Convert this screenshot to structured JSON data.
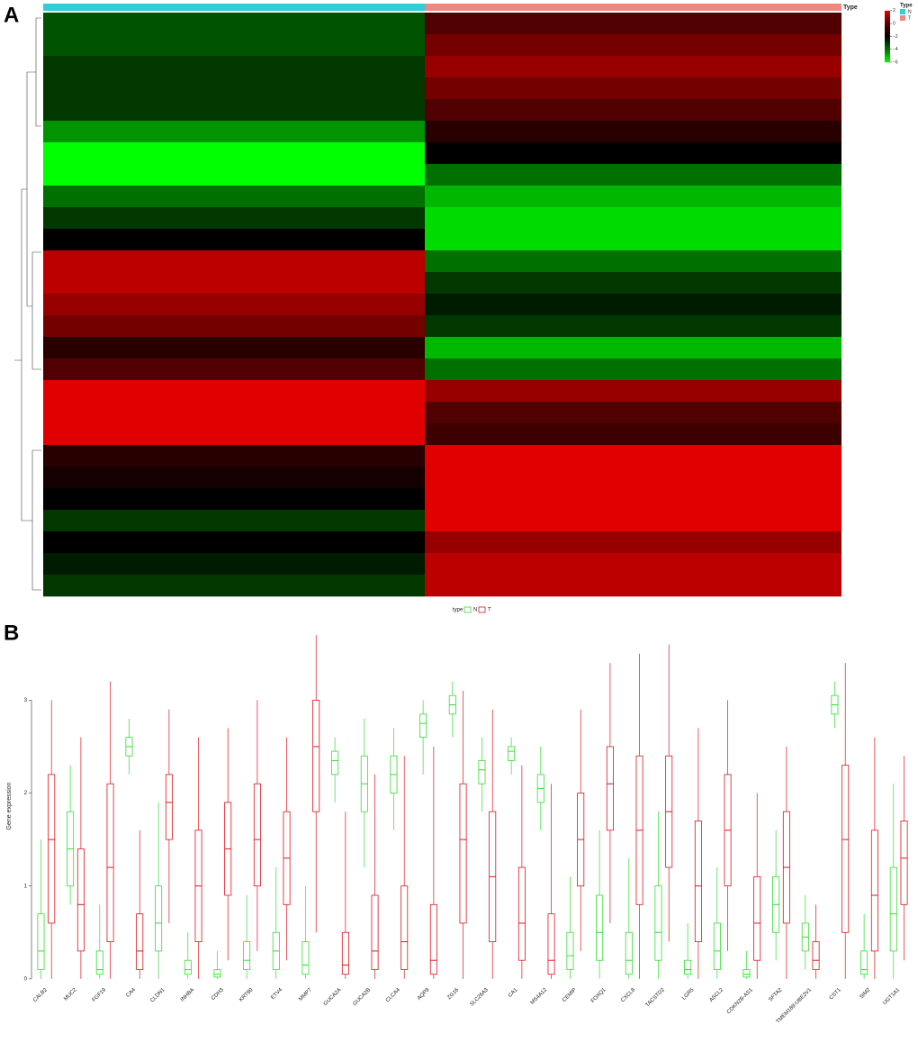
{
  "chart_data": [
    {
      "type": "heatmap",
      "panel_label": "A",
      "annotation": {
        "title": "Type",
        "categories": [
          "N",
          "T"
        ],
        "colors": [
          "#2ecfd6",
          "#f08880"
        ]
      },
      "columns": [
        "N",
        "T"
      ],
      "matrix": [
        [
          -3.5,
          0
        ],
        [
          -3.5,
          0.5
        ],
        [
          -3,
          1
        ],
        [
          -3,
          0.5
        ],
        [
          -3,
          0
        ],
        [
          -4.5,
          -1
        ],
        [
          -6,
          -2
        ],
        [
          -6,
          -4
        ],
        [
          -4,
          -5
        ],
        [
          -3,
          -5.5
        ],
        [
          -2,
          -5.5
        ],
        [
          1.5,
          -4
        ],
        [
          1.5,
          -3
        ],
        [
          1,
          -2.5
        ],
        [
          0.5,
          -3
        ],
        [
          -1,
          -5
        ],
        [
          0,
          -4
        ],
        [
          2.5,
          1
        ],
        [
          2.5,
          0
        ],
        [
          2,
          -0.5
        ],
        [
          -1,
          2.5
        ],
        [
          -1.5,
          2
        ],
        [
          -2,
          2
        ],
        [
          -3,
          2.5
        ],
        [
          -2,
          1
        ],
        [
          -2.5,
          1.5
        ],
        [
          -3,
          1.5
        ]
      ],
      "colorscale": {
        "values": [
          -6,
          -4,
          -2,
          0,
          2
        ],
        "colors": [
          "#00ff00",
          "#007000",
          "#000000",
          "#500000",
          "#e00000"
        ]
      },
      "colorbar_lim": [
        -6.7,
        3.1
      ],
      "colorbar_ticks": [
        2,
        0,
        {
          "value": -2,
          "label": "−2"
        },
        {
          "value": -4,
          "label": "−4"
        },
        {
          "value": -6,
          "label": "−6"
        }
      ]
    },
    {
      "type": "box",
      "panel_label": "B",
      "y_label": "Gene expression",
      "legend_title": "type",
      "categories": [
        "CALB2",
        "MUC2",
        "FGF19",
        "CA4",
        "CLDN1",
        "INHBA",
        "CDH3",
        "KRT80",
        "ETV4",
        "MMP7",
        "GUCA2A",
        "GUCA2B",
        "CLCA4",
        "AQP8",
        "ZG16",
        "SLC26A3",
        "CA1",
        "MS4A12",
        "CEMIP",
        "FOXQ1",
        "CXCL8",
        "TACSTD2",
        "LGR5",
        "ASCL2",
        "CDKN2B-AS1",
        "SFTA2",
        "TMEM189-UBE2V1",
        "CST1",
        "SIM2",
        "UGT1A1"
      ],
      "series": [
        {
          "name": "N",
          "color": "#33dd33",
          "boxes": [
            [
              0,
              0.1,
              0.3,
              0.7,
              1.5
            ],
            [
              0.8,
              1.0,
              1.4,
              1.8,
              2.3
            ],
            [
              0,
              0.05,
              0.1,
              0.3,
              0.8
            ],
            [
              2.2,
              2.4,
              2.5,
              2.6,
              2.8
            ],
            [
              0,
              0.3,
              0.6,
              1.0,
              1.9
            ],
            [
              0,
              0.05,
              0.1,
              0.2,
              0.5
            ],
            [
              0,
              0.02,
              0.05,
              0.1,
              0.3
            ],
            [
              0,
              0.1,
              0.2,
              0.4,
              0.9
            ],
            [
              0,
              0.1,
              0.3,
              0.5,
              1.2
            ],
            [
              0,
              0.05,
              0.15,
              0.4,
              1.0
            ],
            [
              1.9,
              2.2,
              2.35,
              2.45,
              2.6
            ],
            [
              1.2,
              1.8,
              2.1,
              2.4,
              2.8
            ],
            [
              1.6,
              2.0,
              2.2,
              2.4,
              2.7
            ],
            [
              2.2,
              2.6,
              2.75,
              2.85,
              3.0
            ],
            [
              2.6,
              2.85,
              2.95,
              3.05,
              3.2
            ],
            [
              1.8,
              2.1,
              2.25,
              2.35,
              2.6
            ],
            [
              2.2,
              2.35,
              2.45,
              2.5,
              2.6
            ],
            [
              1.6,
              1.9,
              2.05,
              2.2,
              2.5
            ],
            [
              0,
              0.1,
              0.25,
              0.5,
              1.1
            ],
            [
              0,
              0.2,
              0.5,
              0.9,
              1.6
            ],
            [
              0,
              0.05,
              0.2,
              0.5,
              1.3
            ],
            [
              0,
              0.2,
              0.5,
              1.0,
              1.8
            ],
            [
              0,
              0.05,
              0.1,
              0.2,
              0.6
            ],
            [
              0,
              0.1,
              0.3,
              0.6,
              1.2
            ],
            [
              0,
              0.02,
              0.05,
              0.1,
              0.3
            ],
            [
              0.2,
              0.5,
              0.8,
              1.1,
              1.6
            ],
            [
              0.1,
              0.3,
              0.45,
              0.6,
              0.9
            ],
            [
              2.7,
              2.85,
              2.95,
              3.05,
              3.2
            ],
            [
              0,
              0.05,
              0.1,
              0.3,
              0.7
            ],
            [
              0,
              0.3,
              0.7,
              1.2,
              2.1
            ]
          ]
        },
        {
          "name": "T",
          "color": "#e0141e",
          "boxes": [
            [
              0,
              0.6,
              1.5,
              2.2,
              3.0
            ],
            [
              0,
              0.3,
              0.8,
              1.4,
              2.6
            ],
            [
              0,
              0.4,
              1.2,
              2.1,
              3.2
            ],
            [
              0,
              0.1,
              0.3,
              0.7,
              1.6
            ],
            [
              0.6,
              1.5,
              1.9,
              2.2,
              2.9
            ],
            [
              0,
              0.4,
              1.0,
              1.6,
              2.6
            ],
            [
              0.2,
              0.9,
              1.4,
              1.9,
              2.7
            ],
            [
              0.3,
              1.0,
              1.5,
              2.1,
              3.0
            ],
            [
              0.2,
              0.8,
              1.3,
              1.8,
              2.6
            ],
            [
              0.5,
              1.8,
              2.5,
              3.0,
              3.7
            ],
            [
              0,
              0.05,
              0.15,
              0.5,
              1.8
            ],
            [
              0,
              0.1,
              0.3,
              0.9,
              2.2
            ],
            [
              0,
              0.1,
              0.4,
              1.0,
              2.4
            ],
            [
              0,
              0.05,
              0.2,
              0.8,
              2.5
            ],
            [
              0,
              0.6,
              1.5,
              2.1,
              3.1
            ],
            [
              0,
              0.4,
              1.1,
              1.8,
              2.9
            ],
            [
              0,
              0.2,
              0.6,
              1.2,
              2.3
            ],
            [
              0,
              0.05,
              0.2,
              0.7,
              2.1
            ],
            [
              0.3,
              1.0,
              1.5,
              2.0,
              2.9
            ],
            [
              0.6,
              1.6,
              2.1,
              2.5,
              3.4
            ],
            [
              0,
              0.8,
              1.6,
              2.4,
              3.5
            ],
            [
              0.4,
              1.2,
              1.8,
              2.4,
              3.6
            ],
            [
              0,
              0.4,
              1.0,
              1.7,
              2.7
            ],
            [
              0.3,
              1.0,
              1.6,
              2.2,
              3.0
            ],
            [
              0,
              0.2,
              0.6,
              1.1,
              2.0
            ],
            [
              0,
              0.6,
              1.2,
              1.8,
              2.5
            ],
            [
              0,
              0.1,
              0.2,
              0.4,
              0.8
            ],
            [
              0,
              0.5,
              1.5,
              2.3,
              3.4
            ],
            [
              0,
              0.3,
              0.9,
              1.6,
              2.6
            ],
            [
              0.2,
              0.8,
              1.3,
              1.7,
              2.4
            ]
          ]
        }
      ],
      "ylim": [
        -0.05,
        3.75
      ],
      "yticks": [
        0,
        1,
        2,
        3
      ]
    }
  ]
}
